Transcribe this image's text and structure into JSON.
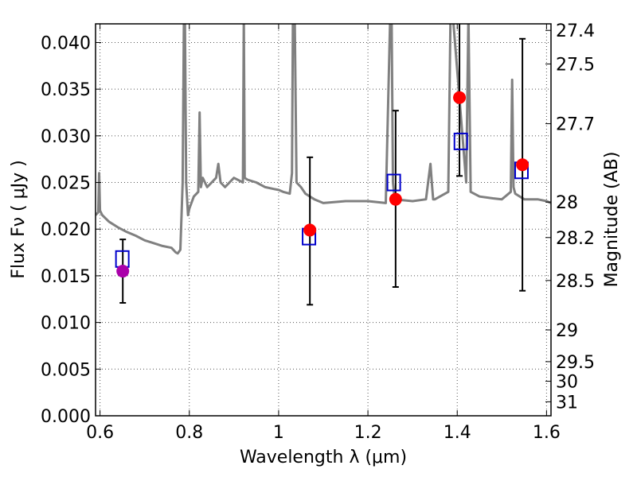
{
  "chart_data": {
    "type": "scatter",
    "xlabel": "Wavelength  λ (μm)",
    "ylabel": "Flux  Fν  ( μJy )",
    "y2label": "Magnitude (AB)",
    "xlim": [
      0.59,
      1.61
    ],
    "ylim": [
      0.0,
      0.042
    ],
    "grid": true,
    "x_ticks": [
      0.6,
      0.8,
      1.0,
      1.2,
      1.4,
      1.6
    ],
    "x_tick_labels": [
      "0.6",
      "0.8",
      "1",
      "1.2",
      "1.4",
      "1.6"
    ],
    "y_ticks": [
      0.0,
      0.005,
      0.01,
      0.015,
      0.02,
      0.025,
      0.03,
      0.035,
      0.04
    ],
    "y_tick_labels": [
      "0.000",
      "0.005",
      "0.010",
      "0.015",
      "0.020",
      "0.025",
      "0.030",
      "0.035",
      "0.040"
    ],
    "y2_tick_labels": [
      "27.4",
      "27.5",
      "27.7",
      "28",
      "28.2",
      "28.5",
      "29",
      "29.5",
      "30",
      "31"
    ],
    "y2_tick_flux": [
      0.0413,
      0.0377,
      0.0313,
      0.0229,
      0.0191,
      0.0145,
      0.0092,
      0.0058,
      0.0037,
      0.0015
    ],
    "colors": {
      "template": "#808080",
      "model_marker": "#0000cc",
      "observed_marker": "#ff0000",
      "special_marker": "#aa00aa",
      "errorbar": "#000000",
      "grid": "#555555"
    },
    "series": [
      {
        "type": "line",
        "x": [
          0.59,
          0.596,
          0.598,
          0.6,
          0.605,
          0.62,
          0.64,
          0.66,
          0.68,
          0.7,
          0.72,
          0.74,
          0.76,
          0.77,
          0.774,
          0.78,
          0.785,
          0.788,
          0.79,
          0.793,
          0.797,
          0.8,
          0.81,
          0.82,
          0.823,
          0.826,
          0.83,
          0.84,
          0.86,
          0.865,
          0.87,
          0.88,
          0.9,
          0.92,
          0.922,
          0.924,
          0.93,
          0.95,
          0.97,
          0.99,
          1.0,
          1.01,
          1.025,
          1.03,
          1.032,
          1.036,
          1.04,
          1.05,
          1.06,
          1.08,
          1.1,
          1.15,
          1.2,
          1.24,
          1.25,
          1.253,
          1.256,
          1.26,
          1.3,
          1.33,
          1.34,
          1.343,
          1.346,
          1.35,
          1.38,
          1.385,
          1.39,
          1.42,
          1.425,
          1.43,
          1.45,
          1.48,
          1.5,
          1.52,
          1.523,
          1.526,
          1.53,
          1.55,
          1.58,
          1.6,
          1.61
        ],
        "y": [
          0.0215,
          0.0218,
          0.026,
          0.022,
          0.0215,
          0.0208,
          0.0202,
          0.0197,
          0.0193,
          0.0188,
          0.0185,
          0.0182,
          0.018,
          0.0175,
          0.0174,
          0.0178,
          0.025,
          0.043,
          0.043,
          0.025,
          0.0215,
          0.0222,
          0.0235,
          0.024,
          0.0325,
          0.0245,
          0.0255,
          0.0245,
          0.0255,
          0.027,
          0.025,
          0.0245,
          0.0255,
          0.025,
          0.043,
          0.0255,
          0.0253,
          0.025,
          0.0245,
          0.0243,
          0.0242,
          0.024,
          0.0238,
          0.026,
          0.043,
          0.043,
          0.025,
          0.0245,
          0.0238,
          0.0232,
          0.0228,
          0.023,
          0.023,
          0.0228,
          0.043,
          0.043,
          0.025,
          0.0232,
          0.023,
          0.0232,
          0.027,
          0.025,
          0.0232,
          0.0232,
          0.024,
          0.043,
          0.043,
          0.025,
          0.043,
          0.024,
          0.0235,
          0.0233,
          0.0232,
          0.024,
          0.036,
          0.0245,
          0.0238,
          0.0232,
          0.0232,
          0.023,
          0.0228
        ]
      },
      {
        "type": "marker-square",
        "x": [
          0.65,
          1.068,
          1.258,
          1.408,
          1.544
        ],
        "y": [
          0.0168,
          0.0192,
          0.025,
          0.0294,
          0.0263
        ]
      },
      {
        "type": "marker-circle",
        "x": [
          1.07,
          1.262,
          1.405,
          1.546
        ],
        "y": [
          0.0199,
          0.0232,
          0.0341,
          0.0269
        ]
      },
      {
        "type": "marker-circle-special",
        "x": [
          0.651
        ],
        "y": [
          0.0155
        ]
      },
      {
        "type": "errorbar",
        "x": [
          0.651,
          1.07,
          1.262,
          1.405,
          1.546
        ],
        "low": [
          0.0121,
          0.0119,
          0.0138,
          0.0257,
          0.0134
        ],
        "high": [
          0.0189,
          0.0277,
          0.0327,
          0.043,
          0.0404
        ]
      }
    ]
  }
}
